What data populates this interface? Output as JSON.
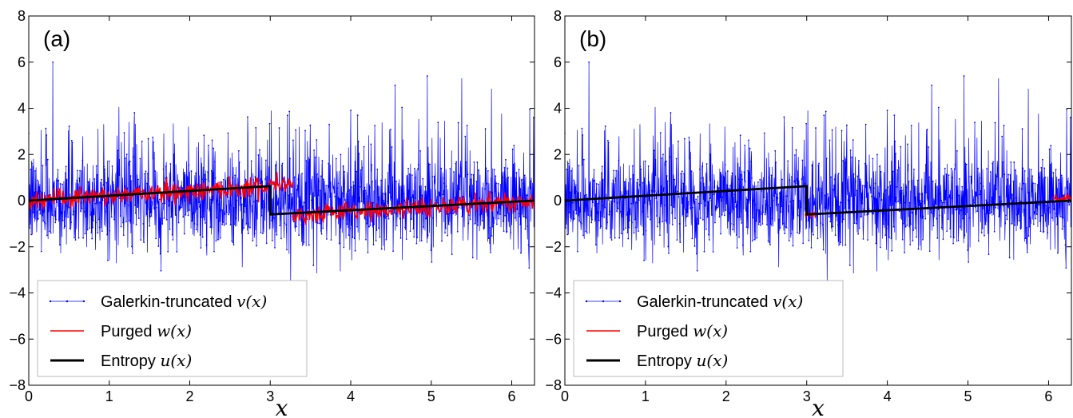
{
  "chart_data": [
    {
      "type": "line",
      "panel_label": "(a)",
      "xlabel": "x",
      "ylabel": "",
      "xlim": [
        0,
        6.283
      ],
      "ylim": [
        -8,
        8
      ],
      "xticks": [
        0,
        1,
        2,
        3,
        4,
        5,
        6
      ],
      "yticks": [
        -8,
        -6,
        -4,
        -2,
        0,
        2,
        4,
        6,
        8
      ],
      "grid": false,
      "legend_position": "lower-left",
      "series": [
        {
          "name": "Galerkin-truncated v(x)",
          "legend_text": "Galerkin-truncated ",
          "legend_math": "v(x)",
          "color": "#0000ff",
          "style": "thin line with dot markers",
          "description_values": {
            "x_range": [
              0,
              6.283
            ],
            "noise_band": [
              -3.5,
              6.0
            ]
          },
          "peaks": [
            {
              "x": 0.3,
              "y": 6.0
            },
            {
              "x": 1.12,
              "y": 4.05
            },
            {
              "x": 4.95,
              "y": 5.4
            },
            {
              "x": 5.38,
              "y": 5.3
            },
            {
              "x": 4.55,
              "y": 5.0
            },
            {
              "x": 5.75,
              "y": 4.85
            },
            {
              "x": 6.27,
              "y": 3.6
            }
          ]
        },
        {
          "name": "Purged w(x)",
          "legend_text": "Purged ",
          "legend_math": "w(x)",
          "color": "#ff0000",
          "segments": [
            {
              "x": [
                0,
                2.98
              ],
              "y": [
                0,
                0.63
              ]
            },
            {
              "x": [
                2.98,
                3.28
              ],
              "y": [
                0.75,
                0.75
              ]
            },
            {
              "x": [
                3.28,
                6.283
              ],
              "y": [
                -0.65,
                0.0
              ]
            }
          ],
          "band_halfwidth": 0.35
        },
        {
          "name": "Entropy u(x)",
          "legend_text": "Entropy ",
          "legend_math": "u(x)",
          "color": "#000000",
          "points": [
            {
              "x": 0,
              "y": 0
            },
            {
              "x": 3.0,
              "y": 0.63
            },
            {
              "x": 3.0,
              "y": -0.6
            },
            {
              "x": 6.283,
              "y": 0
            }
          ]
        }
      ]
    },
    {
      "type": "line",
      "panel_label": "(b)",
      "xlabel": "x",
      "ylabel": "",
      "xlim": [
        0,
        6.283
      ],
      "ylim": [
        -8,
        8
      ],
      "xticks": [
        0,
        1,
        2,
        3,
        4,
        5,
        6
      ],
      "yticks": [
        -8,
        -6,
        -4,
        -2,
        0,
        2,
        4,
        6,
        8
      ],
      "grid": false,
      "legend_position": "lower-left",
      "series": [
        {
          "name": "Galerkin-truncated v(x)",
          "legend_text": "Galerkin-truncated ",
          "legend_math": "v(x)",
          "color": "#0000ff",
          "peaks": [
            {
              "x": 0.3,
              "y": 6.0
            },
            {
              "x": 1.12,
              "y": 4.05
            },
            {
              "x": 4.95,
              "y": 5.4
            },
            {
              "x": 5.38,
              "y": 5.3
            },
            {
              "x": 4.55,
              "y": 5.0
            },
            {
              "x": 5.75,
              "y": 4.85
            },
            {
              "x": 6.27,
              "y": 3.6
            }
          ]
        },
        {
          "name": "Purged w(x)",
          "legend_text": "Purged ",
          "legend_math": "w(x)",
          "color": "#ff0000",
          "segments": [
            {
              "x": [
                2.98,
                3.12
              ],
              "y": [
                -0.6,
                -0.55
              ]
            },
            {
              "x": [
                6.05,
                6.283
              ],
              "y": [
                0.1,
                0.1
              ]
            }
          ],
          "band_halfwidth": 0.12
        },
        {
          "name": "Entropy u(x)",
          "legend_text": "Entropy ",
          "legend_math": "u(x)",
          "color": "#000000",
          "points": [
            {
              "x": 0,
              "y": 0
            },
            {
              "x": 3.0,
              "y": 0.63
            },
            {
              "x": 3.0,
              "y": -0.6
            },
            {
              "x": 6.283,
              "y": 0
            }
          ]
        }
      ]
    }
  ]
}
